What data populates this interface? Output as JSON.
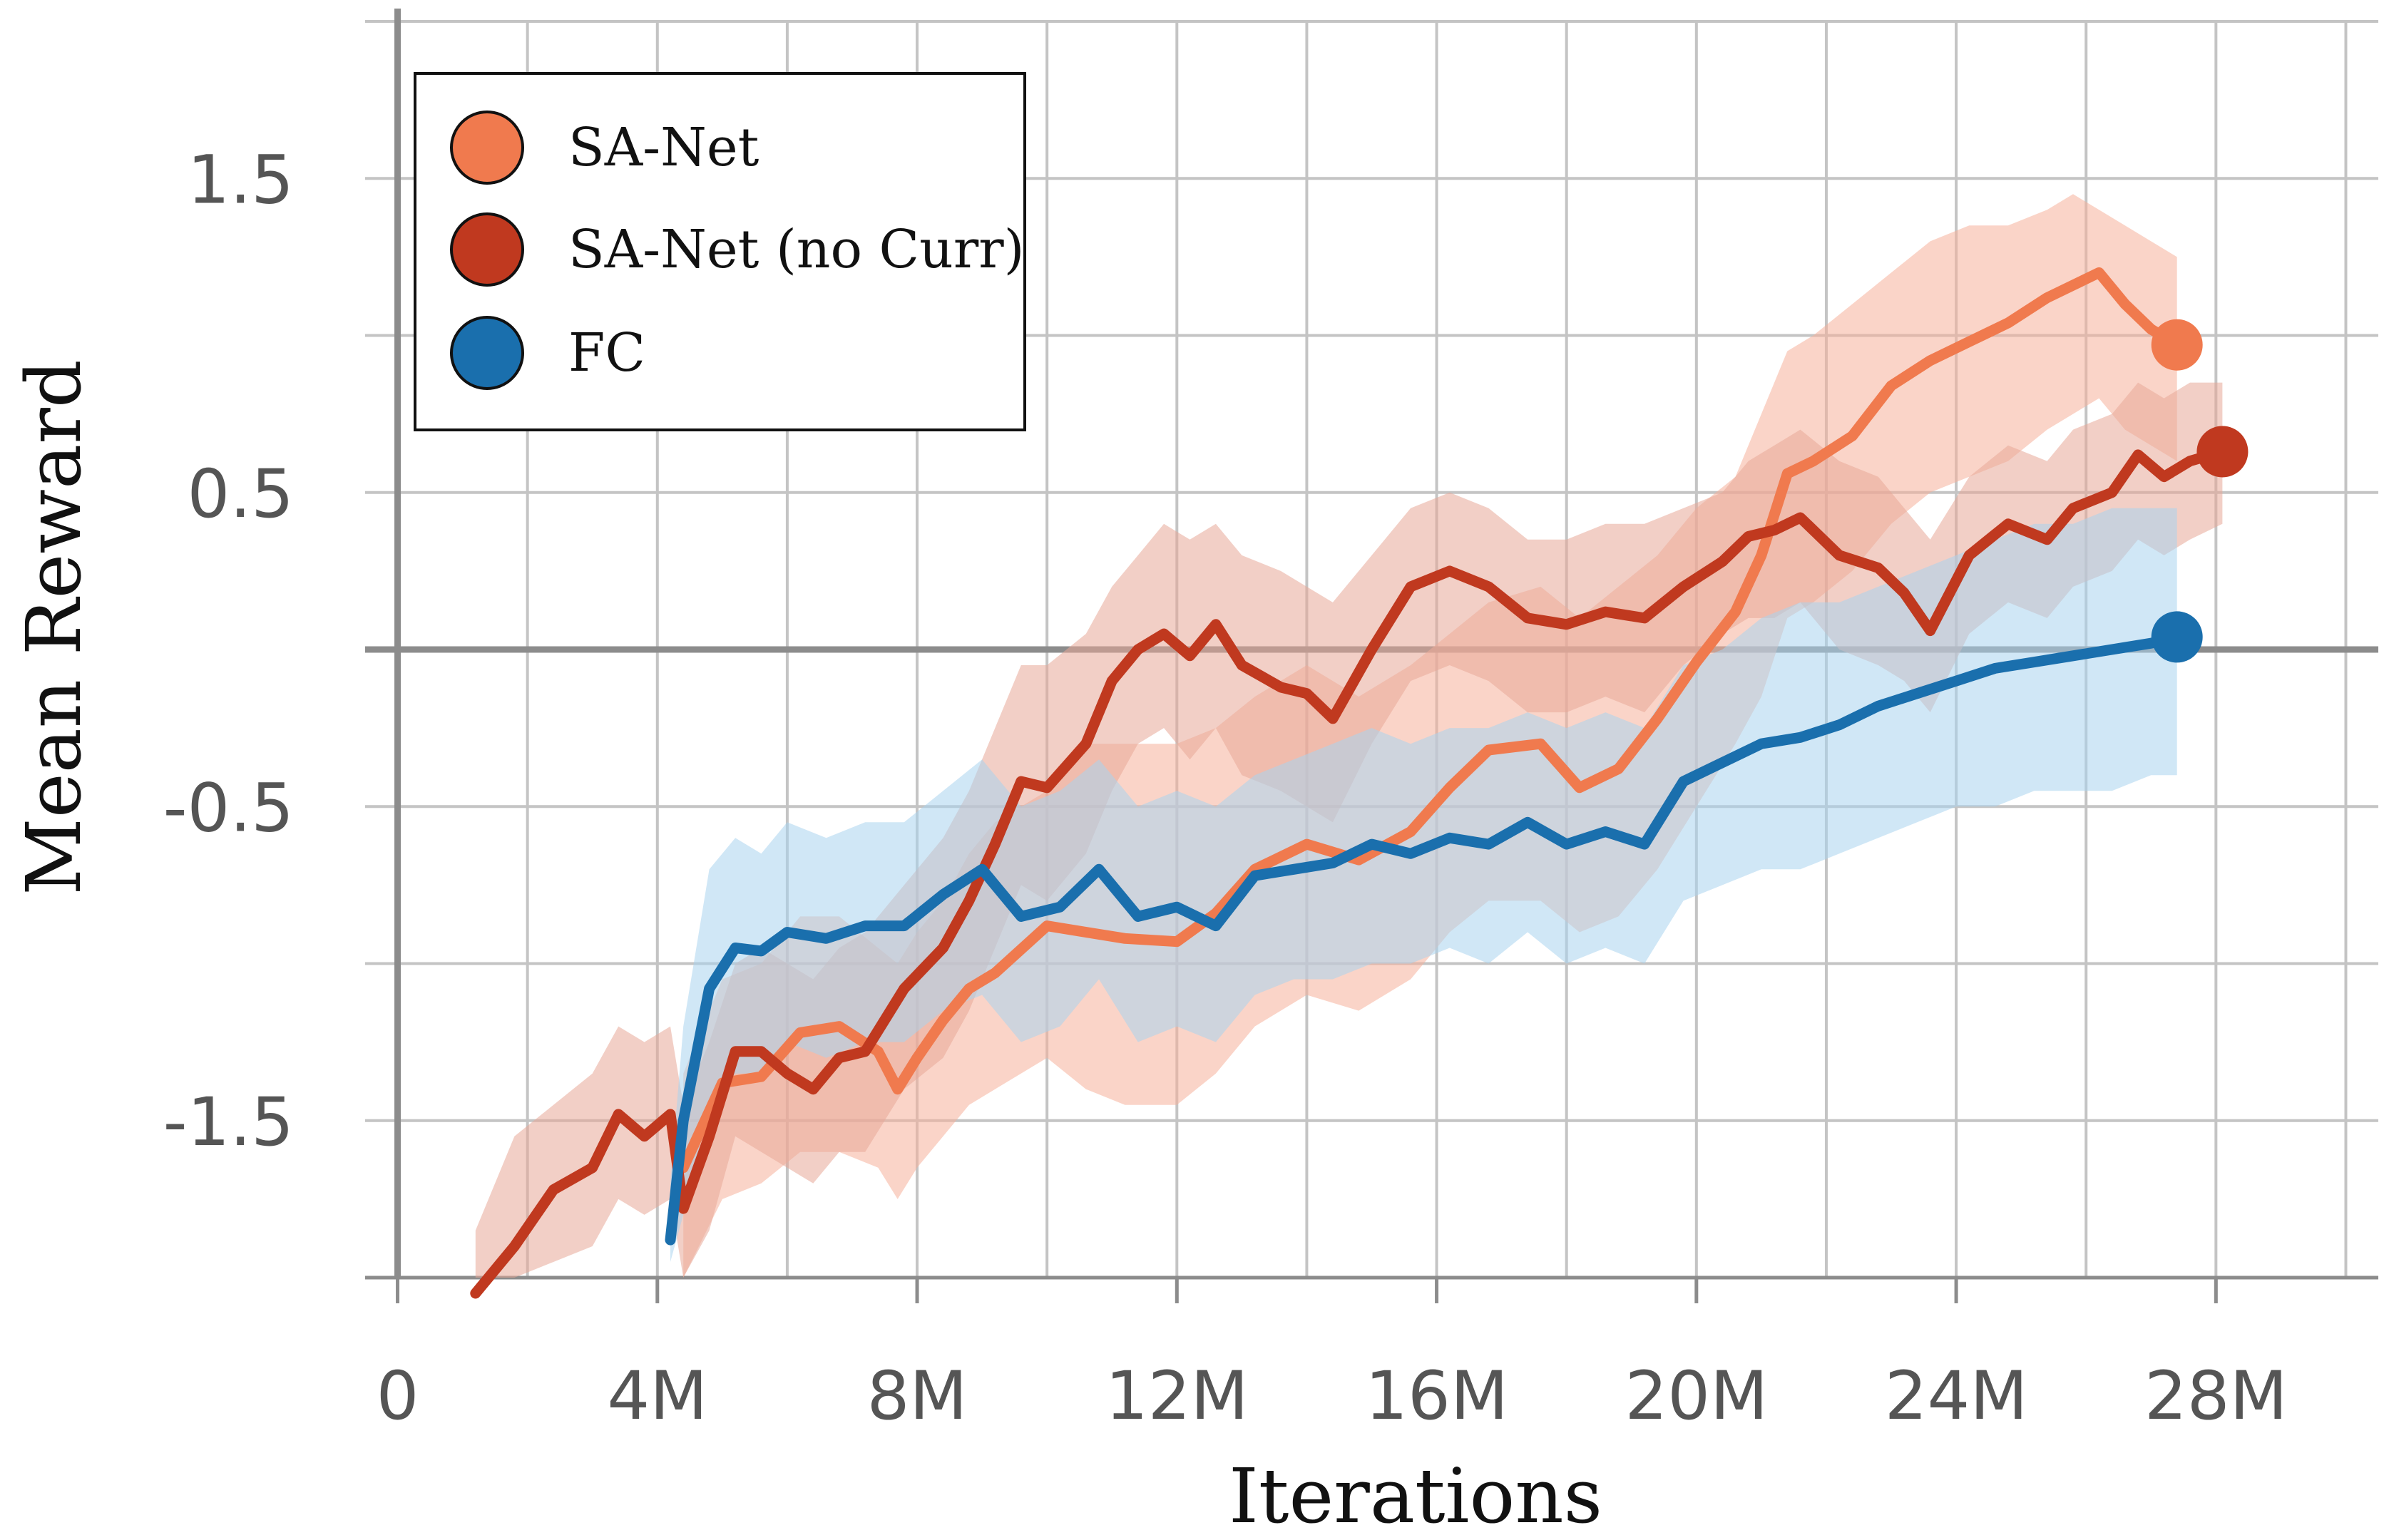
{
  "chart_data": {
    "type": "line",
    "title": "",
    "xlabel": "Iterations",
    "ylabel": "Mean Reward",
    "xlim": [
      -500000,
      30500000
    ],
    "ylim": [
      -2.0,
      2.0
    ],
    "grid": true,
    "legend_position": "top-left",
    "x_ticks": [
      {
        "value": 0,
        "label": "0"
      },
      {
        "value": 4000000,
        "label": "4M"
      },
      {
        "value": 8000000,
        "label": "8M"
      },
      {
        "value": 12000000,
        "label": "12M"
      },
      {
        "value": 16000000,
        "label": "16M"
      },
      {
        "value": 20000000,
        "label": "20M"
      },
      {
        "value": 24000000,
        "label": "24M"
      },
      {
        "value": 28000000,
        "label": "28M"
      }
    ],
    "y_ticks": [
      {
        "value": 1.5,
        "label": "1.5"
      },
      {
        "value": 0.5,
        "label": "0.5"
      },
      {
        "value": -0.5,
        "label": "-0.5"
      },
      {
        "value": -1.5,
        "label": "-1.5"
      }
    ],
    "series": [
      {
        "name": "SA-Net",
        "color": "#f07a4e",
        "band_color": "#f5b09a",
        "x": [
          4400000,
          5000000,
          5600000,
          6200000,
          6800000,
          7400000,
          7700000,
          8000000,
          8400000,
          8800000,
          9200000,
          10000000,
          10600000,
          11200000,
          12000000,
          12600000,
          13200000,
          14000000,
          14800000,
          15600000,
          16200000,
          16800000,
          17600000,
          18200000,
          18800000,
          19400000,
          20000000,
          20600000,
          21000000,
          21400000,
          21800000,
          22400000,
          23000000,
          23600000,
          24200000,
          24800000,
          25400000,
          25800000,
          26200000,
          26600000,
          27000000,
          27400000
        ],
        "values": [
          -1.65,
          -1.38,
          -1.36,
          -1.22,
          -1.2,
          -1.28,
          -1.4,
          -1.3,
          -1.18,
          -1.08,
          -1.03,
          -0.88,
          -0.9,
          -0.92,
          -0.93,
          -0.84,
          -0.7,
          -0.62,
          -0.67,
          -0.58,
          -0.44,
          -0.32,
          -0.3,
          -0.44,
          -0.38,
          -0.22,
          -0.04,
          0.12,
          0.3,
          0.56,
          0.6,
          0.68,
          0.84,
          0.92,
          0.98,
          1.04,
          1.12,
          1.16,
          1.2,
          1.1,
          1.02,
          0.97
        ],
        "band_upper": [
          -1.35,
          -1.05,
          -1.0,
          -0.85,
          -0.85,
          -0.95,
          -1.0,
          -0.9,
          -0.8,
          -0.65,
          -0.55,
          -0.45,
          -0.3,
          -0.3,
          -0.3,
          -0.25,
          -0.15,
          -0.05,
          -0.15,
          -0.05,
          0.05,
          0.15,
          0.2,
          0.1,
          0.2,
          0.3,
          0.45,
          0.55,
          0.75,
          0.95,
          1.0,
          1.1,
          1.2,
          1.3,
          1.35,
          1.35,
          1.4,
          1.45,
          1.4,
          1.35,
          1.3,
          1.25
        ],
        "band_lower": [
          -2.0,
          -1.75,
          -1.7,
          -1.6,
          -1.6,
          -1.65,
          -1.75,
          -1.65,
          -1.55,
          -1.45,
          -1.4,
          -1.3,
          -1.4,
          -1.45,
          -1.45,
          -1.35,
          -1.2,
          -1.1,
          -1.15,
          -1.05,
          -0.9,
          -0.8,
          -0.8,
          -0.9,
          -0.85,
          -0.7,
          -0.5,
          -0.3,
          -0.15,
          0.1,
          0.15,
          0.25,
          0.4,
          0.5,
          0.55,
          0.6,
          0.7,
          0.75,
          0.8,
          0.7,
          0.65,
          0.6
        ]
      },
      {
        "name": "SA-Net (no Curr)",
        "color": "#c0391f",
        "band_color": "#e8a898",
        "x": [
          1200000,
          1800000,
          2400000,
          3000000,
          3400000,
          3800000,
          4200000,
          4400000,
          4800000,
          5200000,
          5600000,
          6000000,
          6400000,
          6800000,
          7200000,
          7800000,
          8400000,
          8800000,
          9200000,
          9600000,
          10000000,
          10600000,
          11000000,
          11400000,
          11800000,
          12200000,
          12600000,
          13000000,
          13600000,
          14000000,
          14400000,
          15000000,
          15600000,
          16200000,
          16800000,
          17400000,
          18000000,
          18600000,
          19200000,
          19800000,
          20400000,
          20800000,
          21200000,
          21600000,
          22200000,
          22800000,
          23200000,
          23600000,
          24200000,
          24800000,
          25400000,
          25800000,
          26400000,
          26800000,
          27200000,
          27600000,
          28100000
        ],
        "values": [
          -2.05,
          -1.9,
          -1.72,
          -1.65,
          -1.48,
          -1.55,
          -1.48,
          -1.78,
          -1.55,
          -1.28,
          -1.28,
          -1.35,
          -1.4,
          -1.3,
          -1.28,
          -1.08,
          -0.95,
          -0.8,
          -0.62,
          -0.42,
          -0.44,
          -0.3,
          -0.1,
          0.0,
          0.05,
          -0.02,
          0.08,
          -0.05,
          -0.12,
          -0.14,
          -0.22,
          0.0,
          0.2,
          0.25,
          0.2,
          0.1,
          0.08,
          0.12,
          0.1,
          0.2,
          0.28,
          0.36,
          0.38,
          0.42,
          0.3,
          0.26,
          0.18,
          0.06,
          0.3,
          0.4,
          0.35,
          0.45,
          0.5,
          0.62,
          0.55,
          0.6,
          0.63
        ],
        "band_upper": [
          -1.85,
          -1.55,
          -1.45,
          -1.35,
          -1.2,
          -1.25,
          -1.2,
          -1.45,
          -1.25,
          -1.0,
          -0.95,
          -1.0,
          -1.05,
          -0.95,
          -0.9,
          -0.75,
          -0.6,
          -0.45,
          -0.25,
          -0.05,
          -0.05,
          0.05,
          0.2,
          0.3,
          0.4,
          0.35,
          0.4,
          0.3,
          0.25,
          0.2,
          0.15,
          0.3,
          0.45,
          0.5,
          0.45,
          0.35,
          0.35,
          0.4,
          0.4,
          0.45,
          0.5,
          0.6,
          0.65,
          0.7,
          0.6,
          0.55,
          0.45,
          0.35,
          0.55,
          0.65,
          0.6,
          0.7,
          0.75,
          0.85,
          0.8,
          0.85,
          0.85
        ],
        "band_lower": [
          -2.0,
          -2.0,
          -1.95,
          -1.9,
          -1.75,
          -1.8,
          -1.75,
          -2.0,
          -1.85,
          -1.55,
          -1.6,
          -1.65,
          -1.7,
          -1.6,
          -1.6,
          -1.4,
          -1.3,
          -1.15,
          -0.95,
          -0.75,
          -0.8,
          -0.65,
          -0.45,
          -0.3,
          -0.25,
          -0.35,
          -0.25,
          -0.4,
          -0.45,
          -0.5,
          -0.55,
          -0.3,
          -0.1,
          -0.05,
          -0.1,
          -0.2,
          -0.2,
          -0.15,
          -0.2,
          -0.05,
          0.05,
          0.1,
          0.1,
          0.15,
          0.0,
          -0.05,
          -0.1,
          -0.2,
          0.05,
          0.15,
          0.1,
          0.2,
          0.25,
          0.35,
          0.3,
          0.35,
          0.4
        ]
      },
      {
        "name": "FC",
        "color": "#1a6fad",
        "band_color": "#a9d3ee",
        "x": [
          4200000,
          4400000,
          4800000,
          5200000,
          5600000,
          6000000,
          6600000,
          7200000,
          7800000,
          8400000,
          9000000,
          9600000,
          10200000,
          10800000,
          11400000,
          12000000,
          12600000,
          13200000,
          13800000,
          14400000,
          15000000,
          15600000,
          16200000,
          16800000,
          17400000,
          18000000,
          18600000,
          19200000,
          19800000,
          20400000,
          21000000,
          21600000,
          22200000,
          22800000,
          23400000,
          24000000,
          24600000,
          25200000,
          25800000,
          26400000,
          27000000,
          27400000
        ],
        "values": [
          -1.88,
          -1.5,
          -1.08,
          -0.95,
          -0.96,
          -0.9,
          -0.92,
          -0.88,
          -0.88,
          -0.78,
          -0.7,
          -0.85,
          -0.82,
          -0.7,
          -0.85,
          -0.82,
          -0.88,
          -0.72,
          -0.7,
          -0.68,
          -0.62,
          -0.65,
          -0.6,
          -0.62,
          -0.55,
          -0.62,
          -0.58,
          -0.62,
          -0.42,
          -0.36,
          -0.3,
          -0.28,
          -0.24,
          -0.18,
          -0.14,
          -0.1,
          -0.06,
          -0.04,
          -0.02,
          0.0,
          0.02,
          0.04
        ],
        "band_upper": [
          -1.7,
          -1.2,
          -0.7,
          -0.6,
          -0.65,
          -0.55,
          -0.6,
          -0.55,
          -0.55,
          -0.45,
          -0.35,
          -0.5,
          -0.45,
          -0.35,
          -0.5,
          -0.45,
          -0.5,
          -0.4,
          -0.35,
          -0.3,
          -0.25,
          -0.3,
          -0.25,
          -0.25,
          -0.2,
          -0.25,
          -0.2,
          -0.25,
          -0.05,
          0.0,
          0.1,
          0.15,
          0.15,
          0.2,
          0.25,
          0.3,
          0.35,
          0.4,
          0.4,
          0.45,
          0.45,
          0.45
        ],
        "band_lower": [
          -1.95,
          -1.8,
          -1.45,
          -1.35,
          -1.35,
          -1.25,
          -1.3,
          -1.25,
          -1.25,
          -1.15,
          -1.1,
          -1.25,
          -1.2,
          -1.05,
          -1.25,
          -1.2,
          -1.25,
          -1.1,
          -1.05,
          -1.05,
          -1.0,
          -1.0,
          -0.95,
          -1.0,
          -0.9,
          -1.0,
          -0.95,
          -1.0,
          -0.8,
          -0.75,
          -0.7,
          -0.7,
          -0.65,
          -0.6,
          -0.55,
          -0.5,
          -0.5,
          -0.45,
          -0.45,
          -0.45,
          -0.4,
          -0.4
        ]
      }
    ]
  }
}
